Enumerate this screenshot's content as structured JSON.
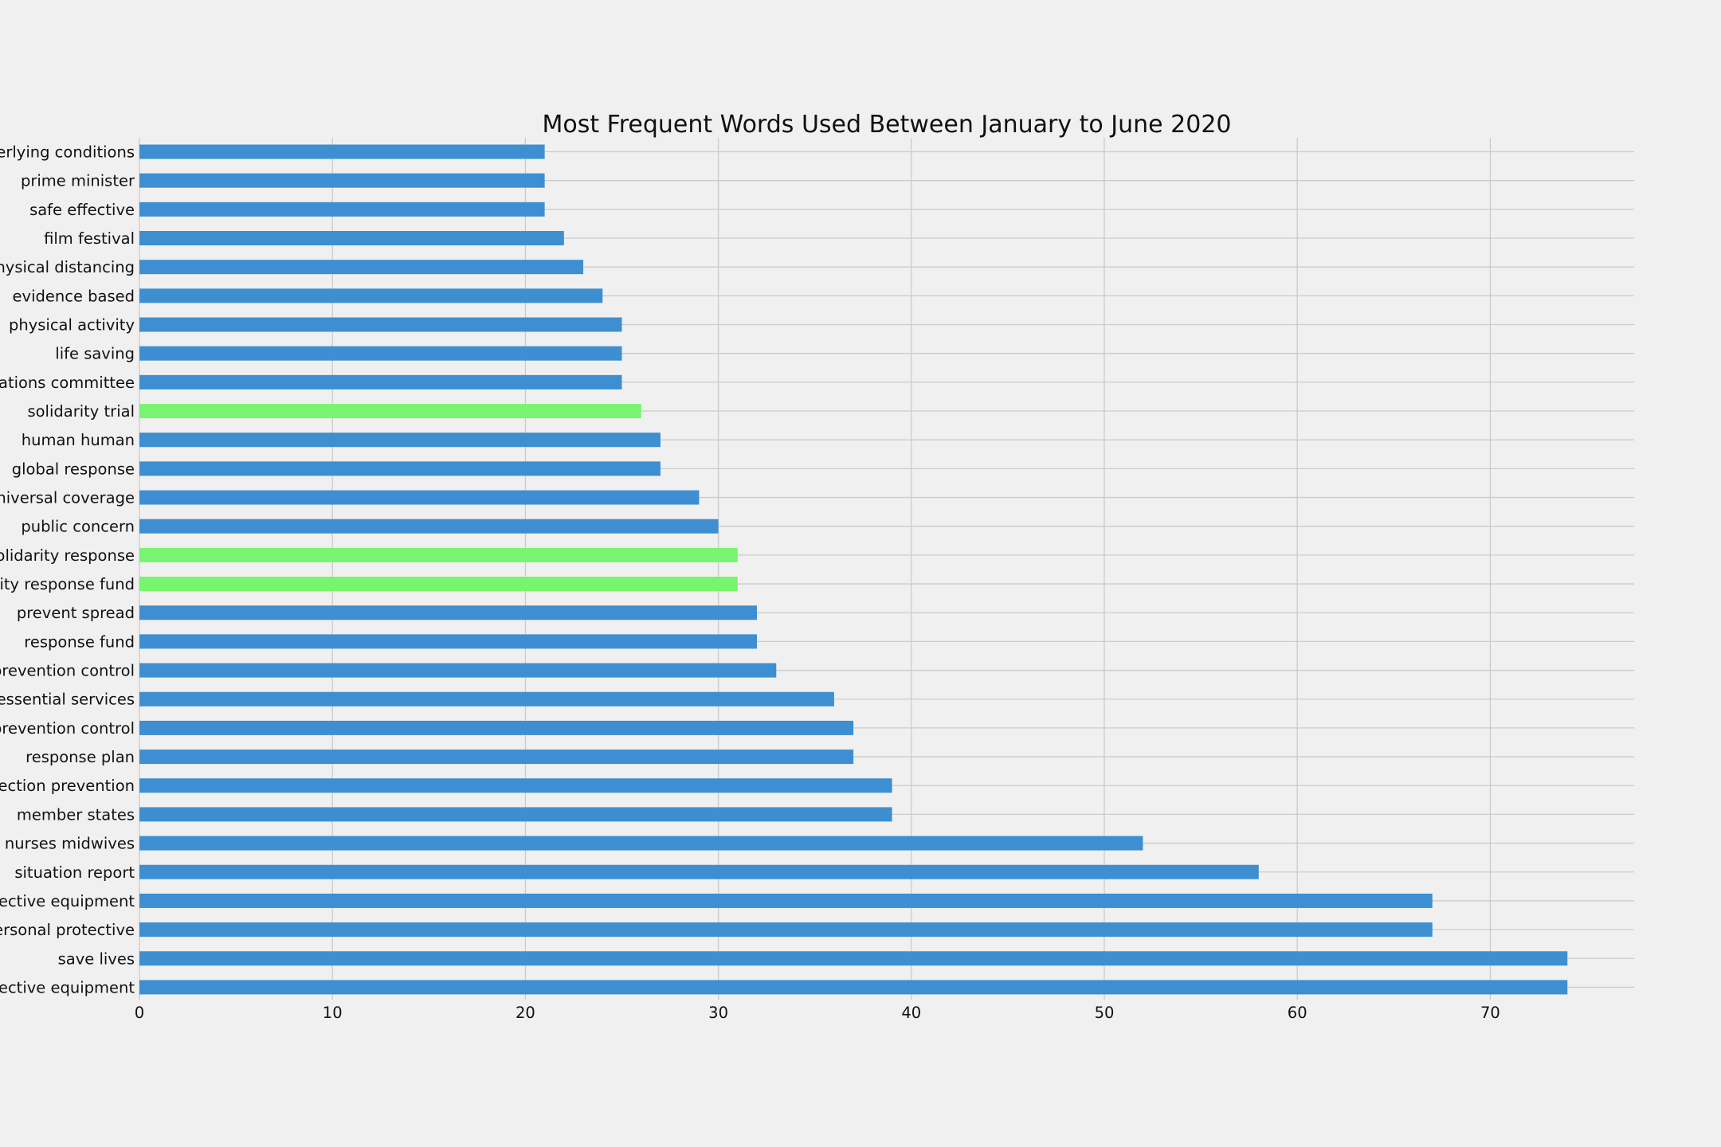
{
  "chart_data": {
    "type": "bar",
    "orientation": "horizontal",
    "title": "Most Frequent Words Used Between January to June 2020",
    "xlabel": "",
    "ylabel": "",
    "xlim": [
      0,
      77.5
    ],
    "xticks": [
      "0",
      "10",
      "20",
      "30",
      "40",
      "50",
      "60",
      "70"
    ],
    "grid": true,
    "colors": {
      "default": "#3d8fd1",
      "highlight": "#78f56e",
      "background": "#f0f0f0",
      "grid": "#cbcbcb"
    },
    "categories": [
      "personal protective equipment",
      "save lives",
      "personal protective",
      "protective equipment",
      "situation report",
      "nurses midwives",
      "member states",
      "infection prevention",
      "response plan",
      "infection prevention control",
      "essential services",
      "prevention control",
      "response fund",
      "prevent spread",
      "solidarity response fund",
      "solidarity response",
      "public concern",
      "universal coverage",
      "global response",
      "human human",
      "solidarity trial",
      "regulations committee",
      "life saving",
      "physical activity",
      "evidence based",
      "physical distancing",
      "film festival",
      "safe effective",
      "prime minister",
      "underlying conditions"
    ],
    "values": [
      74,
      74,
      67,
      67,
      58,
      52,
      39,
      39,
      37,
      37,
      36,
      33,
      32,
      32,
      31,
      31,
      30,
      29,
      27,
      27,
      26,
      25,
      25,
      25,
      24,
      23,
      22,
      21,
      21,
      21
    ],
    "highlighted": [
      false,
      false,
      false,
      false,
      false,
      false,
      false,
      false,
      false,
      false,
      false,
      false,
      false,
      false,
      true,
      true,
      false,
      false,
      false,
      false,
      true,
      false,
      false,
      false,
      false,
      false,
      false,
      false,
      false,
      false
    ]
  }
}
